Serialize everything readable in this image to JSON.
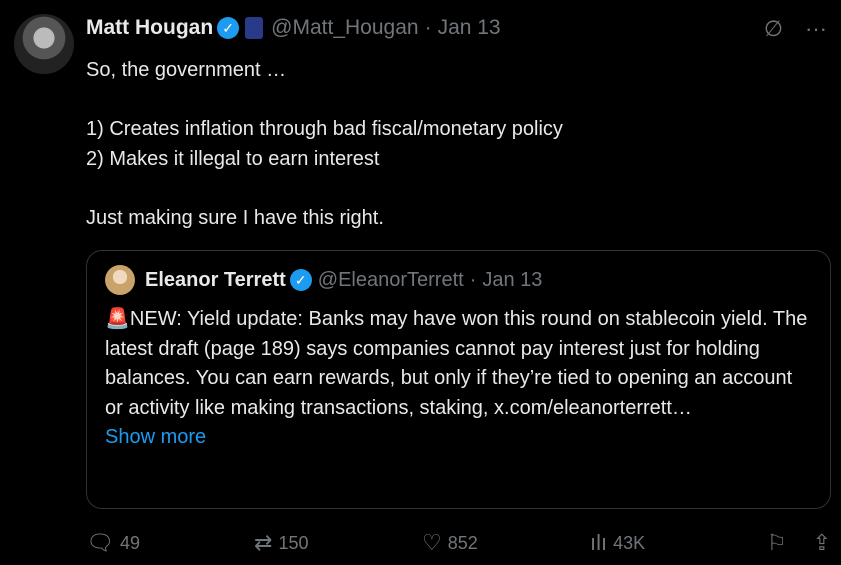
{
  "tweet": {
    "name": "Matt Hougan",
    "handle": "@Matt_Hougan",
    "date": "Jan 13",
    "text": "So, the government …\n\n1) Creates inflation through bad fiscal/monetary policy\n2) Makes it illegal to earn interest\n\nJust making sure I have this right."
  },
  "quote": {
    "name": "Eleanor Terrett",
    "handle": "@EleanorTerrett",
    "date": "Jan 13",
    "emoji": "🚨",
    "text": "NEW: Yield update: Banks may have won this round on stablecoin yield. The latest draft (page 189) says companies cannot pay interest just for holding balances. You can earn rewards, but only if they’re tied to opening an account or activity like making transactions, staking, x.com/eleanorterrett…",
    "show_more": "Show more"
  },
  "actions": {
    "replies": "49",
    "reposts": "150",
    "likes": "852",
    "views": "43K"
  },
  "sep": "·",
  "colors": {
    "accent": "#1d9bf0",
    "muted": "#71767b"
  }
}
